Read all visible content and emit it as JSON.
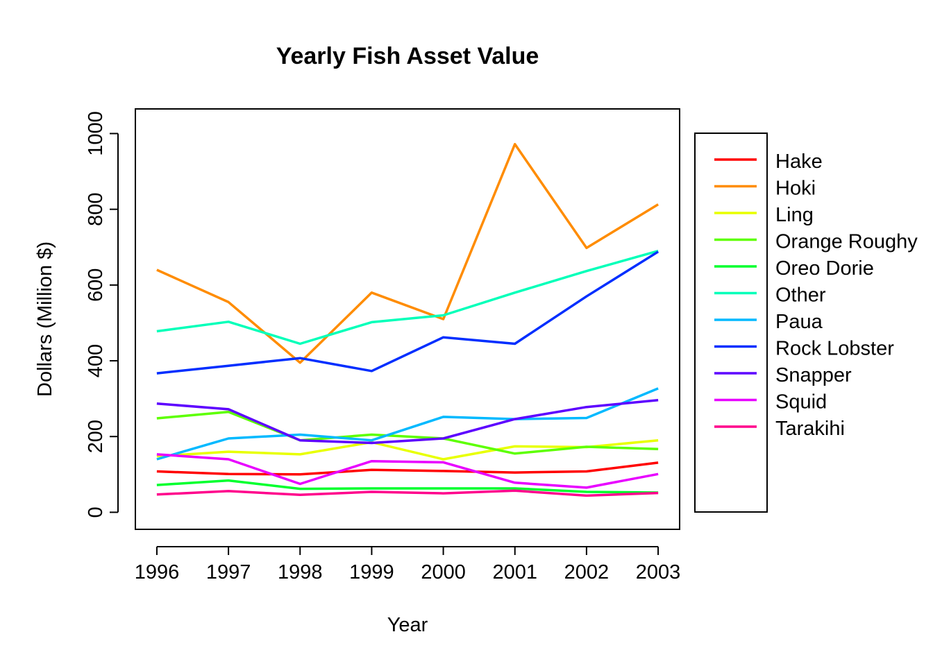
{
  "chart_data": {
    "type": "line",
    "title": "Yearly Fish Asset Value",
    "xlabel": "Year",
    "ylabel": "Dollars (Million $)",
    "x": [
      1996,
      1997,
      1998,
      1999,
      2000,
      2001,
      2002,
      2003
    ],
    "x_ticks": [
      "1996",
      "1997",
      "1998",
      "1999",
      "2000",
      "2001",
      "2002",
      "2003"
    ],
    "y_ticks": [
      0,
      200,
      400,
      600,
      800,
      1000
    ],
    "y_tick_labels": [
      "0",
      "200",
      "400",
      "600",
      "800",
      "1000"
    ],
    "ylim": [
      -45,
      1065
    ],
    "xlim": [
      1995.7,
      2003.3
    ],
    "grid": false,
    "legend_position": "right",
    "series": [
      {
        "name": "Hake",
        "color": "#FF0000",
        "values": [
          108,
          101,
          100,
          112,
          109,
          105,
          108,
          131
        ]
      },
      {
        "name": "Hoki",
        "color": "#FF8C00",
        "values": [
          640,
          555,
          395,
          580,
          510,
          972,
          698,
          813
        ]
      },
      {
        "name": "Ling",
        "color": "#E8FF00",
        "values": [
          148,
          160,
          153,
          185,
          140,
          174,
          172,
          190
        ]
      },
      {
        "name": "Orange Roughy",
        "color": "#5DFF00",
        "values": [
          248,
          265,
          190,
          205,
          195,
          155,
          173,
          167
        ]
      },
      {
        "name": "Oreo Dorie",
        "color": "#00FF2E",
        "values": [
          72,
          84,
          62,
          63,
          63,
          63,
          54,
          52
        ]
      },
      {
        "name": "Other",
        "color": "#00FFB9",
        "values": [
          478,
          503,
          445,
          502,
          520,
          580,
          637,
          690
        ]
      },
      {
        "name": "Paua",
        "color": "#00B9FF",
        "values": [
          140,
          195,
          205,
          190,
          252,
          246,
          249,
          327
        ]
      },
      {
        "name": "Rock Lobster",
        "color": "#002EFF",
        "values": [
          367,
          387,
          407,
          373,
          462,
          445,
          570,
          688
        ]
      },
      {
        "name": "Snapper",
        "color": "#5D00FF",
        "values": [
          287,
          272,
          190,
          183,
          195,
          246,
          278,
          296
        ]
      },
      {
        "name": "Squid",
        "color": "#E800FF",
        "values": [
          153,
          140,
          75,
          135,
          132,
          78,
          65,
          101
        ]
      },
      {
        "name": "Tarakihi",
        "color": "#FF008C",
        "values": [
          47,
          56,
          46,
          54,
          50,
          57,
          44,
          51
        ]
      }
    ]
  }
}
